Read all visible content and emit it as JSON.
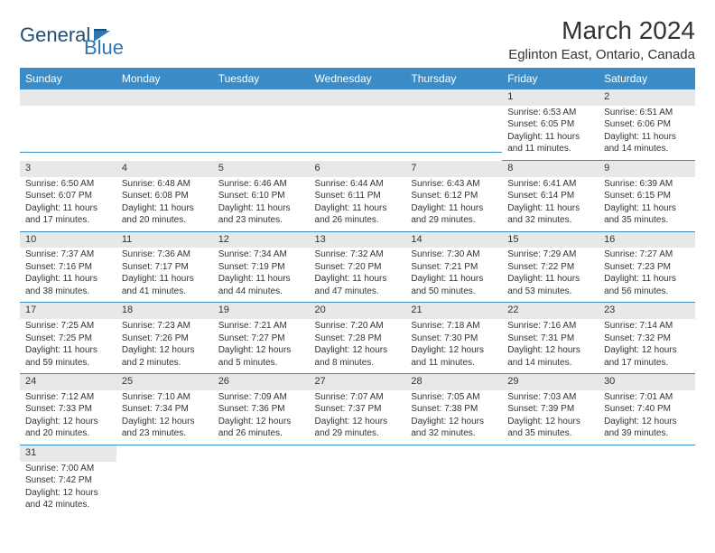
{
  "colors": {
    "header_bg": "#3b8bc7",
    "daynum_bg": "#e8e8e8",
    "divider": "#3b8bc7",
    "text": "#333333",
    "logo_dark": "#1f4e79",
    "logo_light": "#2e75b6"
  },
  "logo": {
    "part1": "General",
    "part2": "Blue"
  },
  "title": "March 2024",
  "location": "Eglinton East, Ontario, Canada",
  "day_headers": [
    "Sunday",
    "Monday",
    "Tuesday",
    "Wednesday",
    "Thursday",
    "Friday",
    "Saturday"
  ],
  "weeks": [
    [
      {
        "blank": true
      },
      {
        "blank": true
      },
      {
        "blank": true
      },
      {
        "blank": true
      },
      {
        "blank": true
      },
      {
        "day": "1",
        "sunrise": "Sunrise: 6:53 AM",
        "sunset": "Sunset: 6:05 PM",
        "daylight1": "Daylight: 11 hours",
        "daylight2": "and 11 minutes."
      },
      {
        "day": "2",
        "sunrise": "Sunrise: 6:51 AM",
        "sunset": "Sunset: 6:06 PM",
        "daylight1": "Daylight: 11 hours",
        "daylight2": "and 14 minutes."
      }
    ],
    [
      {
        "day": "3",
        "sunrise": "Sunrise: 6:50 AM",
        "sunset": "Sunset: 6:07 PM",
        "daylight1": "Daylight: 11 hours",
        "daylight2": "and 17 minutes."
      },
      {
        "day": "4",
        "sunrise": "Sunrise: 6:48 AM",
        "sunset": "Sunset: 6:08 PM",
        "daylight1": "Daylight: 11 hours",
        "daylight2": "and 20 minutes."
      },
      {
        "day": "5",
        "sunrise": "Sunrise: 6:46 AM",
        "sunset": "Sunset: 6:10 PM",
        "daylight1": "Daylight: 11 hours",
        "daylight2": "and 23 minutes."
      },
      {
        "day": "6",
        "sunrise": "Sunrise: 6:44 AM",
        "sunset": "Sunset: 6:11 PM",
        "daylight1": "Daylight: 11 hours",
        "daylight2": "and 26 minutes."
      },
      {
        "day": "7",
        "sunrise": "Sunrise: 6:43 AM",
        "sunset": "Sunset: 6:12 PM",
        "daylight1": "Daylight: 11 hours",
        "daylight2": "and 29 minutes."
      },
      {
        "day": "8",
        "sunrise": "Sunrise: 6:41 AM",
        "sunset": "Sunset: 6:14 PM",
        "daylight1": "Daylight: 11 hours",
        "daylight2": "and 32 minutes."
      },
      {
        "day": "9",
        "sunrise": "Sunrise: 6:39 AM",
        "sunset": "Sunset: 6:15 PM",
        "daylight1": "Daylight: 11 hours",
        "daylight2": "and 35 minutes."
      }
    ],
    [
      {
        "day": "10",
        "sunrise": "Sunrise: 7:37 AM",
        "sunset": "Sunset: 7:16 PM",
        "daylight1": "Daylight: 11 hours",
        "daylight2": "and 38 minutes."
      },
      {
        "day": "11",
        "sunrise": "Sunrise: 7:36 AM",
        "sunset": "Sunset: 7:17 PM",
        "daylight1": "Daylight: 11 hours",
        "daylight2": "and 41 minutes."
      },
      {
        "day": "12",
        "sunrise": "Sunrise: 7:34 AM",
        "sunset": "Sunset: 7:19 PM",
        "daylight1": "Daylight: 11 hours",
        "daylight2": "and 44 minutes."
      },
      {
        "day": "13",
        "sunrise": "Sunrise: 7:32 AM",
        "sunset": "Sunset: 7:20 PM",
        "daylight1": "Daylight: 11 hours",
        "daylight2": "and 47 minutes."
      },
      {
        "day": "14",
        "sunrise": "Sunrise: 7:30 AM",
        "sunset": "Sunset: 7:21 PM",
        "daylight1": "Daylight: 11 hours",
        "daylight2": "and 50 minutes."
      },
      {
        "day": "15",
        "sunrise": "Sunrise: 7:29 AM",
        "sunset": "Sunset: 7:22 PM",
        "daylight1": "Daylight: 11 hours",
        "daylight2": "and 53 minutes."
      },
      {
        "day": "16",
        "sunrise": "Sunrise: 7:27 AM",
        "sunset": "Sunset: 7:23 PM",
        "daylight1": "Daylight: 11 hours",
        "daylight2": "and 56 minutes."
      }
    ],
    [
      {
        "day": "17",
        "sunrise": "Sunrise: 7:25 AM",
        "sunset": "Sunset: 7:25 PM",
        "daylight1": "Daylight: 11 hours",
        "daylight2": "and 59 minutes."
      },
      {
        "day": "18",
        "sunrise": "Sunrise: 7:23 AM",
        "sunset": "Sunset: 7:26 PM",
        "daylight1": "Daylight: 12 hours",
        "daylight2": "and 2 minutes."
      },
      {
        "day": "19",
        "sunrise": "Sunrise: 7:21 AM",
        "sunset": "Sunset: 7:27 PM",
        "daylight1": "Daylight: 12 hours",
        "daylight2": "and 5 minutes."
      },
      {
        "day": "20",
        "sunrise": "Sunrise: 7:20 AM",
        "sunset": "Sunset: 7:28 PM",
        "daylight1": "Daylight: 12 hours",
        "daylight2": "and 8 minutes."
      },
      {
        "day": "21",
        "sunrise": "Sunrise: 7:18 AM",
        "sunset": "Sunset: 7:30 PM",
        "daylight1": "Daylight: 12 hours",
        "daylight2": "and 11 minutes."
      },
      {
        "day": "22",
        "sunrise": "Sunrise: 7:16 AM",
        "sunset": "Sunset: 7:31 PM",
        "daylight1": "Daylight: 12 hours",
        "daylight2": "and 14 minutes."
      },
      {
        "day": "23",
        "sunrise": "Sunrise: 7:14 AM",
        "sunset": "Sunset: 7:32 PM",
        "daylight1": "Daylight: 12 hours",
        "daylight2": "and 17 minutes."
      }
    ],
    [
      {
        "day": "24",
        "sunrise": "Sunrise: 7:12 AM",
        "sunset": "Sunset: 7:33 PM",
        "daylight1": "Daylight: 12 hours",
        "daylight2": "and 20 minutes."
      },
      {
        "day": "25",
        "sunrise": "Sunrise: 7:10 AM",
        "sunset": "Sunset: 7:34 PM",
        "daylight1": "Daylight: 12 hours",
        "daylight2": "and 23 minutes."
      },
      {
        "day": "26",
        "sunrise": "Sunrise: 7:09 AM",
        "sunset": "Sunset: 7:36 PM",
        "daylight1": "Daylight: 12 hours",
        "daylight2": "and 26 minutes."
      },
      {
        "day": "27",
        "sunrise": "Sunrise: 7:07 AM",
        "sunset": "Sunset: 7:37 PM",
        "daylight1": "Daylight: 12 hours",
        "daylight2": "and 29 minutes."
      },
      {
        "day": "28",
        "sunrise": "Sunrise: 7:05 AM",
        "sunset": "Sunset: 7:38 PM",
        "daylight1": "Daylight: 12 hours",
        "daylight2": "and 32 minutes."
      },
      {
        "day": "29",
        "sunrise": "Sunrise: 7:03 AM",
        "sunset": "Sunset: 7:39 PM",
        "daylight1": "Daylight: 12 hours",
        "daylight2": "and 35 minutes."
      },
      {
        "day": "30",
        "sunrise": "Sunrise: 7:01 AM",
        "sunset": "Sunset: 7:40 PM",
        "daylight1": "Daylight: 12 hours",
        "daylight2": "and 39 minutes."
      }
    ],
    [
      {
        "day": "31",
        "sunrise": "Sunrise: 7:00 AM",
        "sunset": "Sunset: 7:42 PM",
        "daylight1": "Daylight: 12 hours",
        "daylight2": "and 42 minutes."
      },
      {
        "blank": true
      },
      {
        "blank": true
      },
      {
        "blank": true
      },
      {
        "blank": true
      },
      {
        "blank": true
      },
      {
        "blank": true
      }
    ]
  ]
}
